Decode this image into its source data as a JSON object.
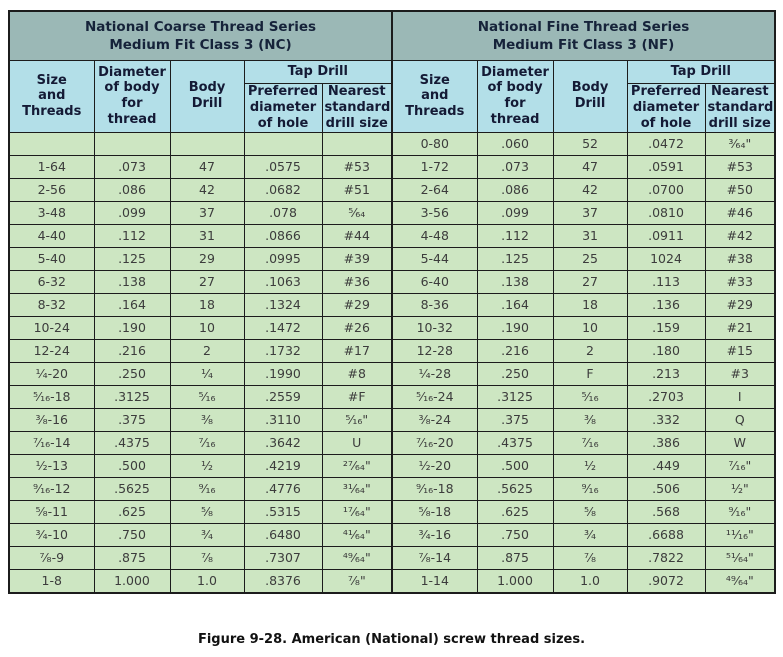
{
  "caption": "Figure 9-28. American (National) screw thread sizes.",
  "table": {
    "sections": [
      {
        "title": "National Coarse Thread Series\nMedium Fit Class 3 (NC)"
      },
      {
        "title": "National Fine Thread Series\nMedium Fit Class 3 (NF)"
      }
    ],
    "columns": {
      "size": "Size\nand\nThreads",
      "diameter": "Diameter\nof body\nfor\nthread",
      "body_drill": "Body\nDrill",
      "tap_drill": "Tap Drill",
      "preferred": "Preferred\ndiameter\nof hole",
      "nearest": "Nearest\nstandard\ndrill size"
    },
    "rows": [
      {
        "nc": [
          "",
          "",
          "",
          "",
          ""
        ],
        "nf": [
          "0-80",
          ".060",
          "52",
          ".0472",
          "³⁄₆₄\""
        ]
      },
      {
        "nc": [
          "1-64",
          ".073",
          "47",
          ".0575",
          "#53"
        ],
        "nf": [
          "1-72",
          ".073",
          "47",
          ".0591",
          "#53"
        ]
      },
      {
        "nc": [
          "2-56",
          ".086",
          "42",
          ".0682",
          "#51"
        ],
        "nf": [
          "2-64",
          ".086",
          "42",
          ".0700",
          "#50"
        ]
      },
      {
        "nc": [
          "3-48",
          ".099",
          "37",
          ".078",
          "⁵⁄₆₄"
        ],
        "nf": [
          "3-56",
          ".099",
          "37",
          ".0810",
          "#46"
        ]
      },
      {
        "nc": [
          "4-40",
          ".112",
          "31",
          ".0866",
          "#44"
        ],
        "nf": [
          "4-48",
          ".112",
          "31",
          ".0911",
          "#42"
        ]
      },
      {
        "nc": [
          "5-40",
          ".125",
          "29",
          ".0995",
          "#39"
        ],
        "nf": [
          "5-44",
          ".125",
          "25",
          "1024",
          "#38"
        ]
      },
      {
        "nc": [
          "6-32",
          ".138",
          "27",
          ".1063",
          "#36"
        ],
        "nf": [
          "6-40",
          ".138",
          "27",
          ".113",
          "#33"
        ]
      },
      {
        "nc": [
          "8-32",
          ".164",
          "18",
          ".1324",
          "#29"
        ],
        "nf": [
          "8-36",
          ".164",
          "18",
          ".136",
          "#29"
        ]
      },
      {
        "nc": [
          "10-24",
          ".190",
          "10",
          ".1472",
          "#26"
        ],
        "nf": [
          "10-32",
          ".190",
          "10",
          ".159",
          "#21"
        ]
      },
      {
        "nc": [
          "12-24",
          ".216",
          "2",
          ".1732",
          "#17"
        ],
        "nf": [
          "12-28",
          ".216",
          "2",
          ".180",
          "#15"
        ]
      },
      {
        "nc": [
          "¹⁄₄-20",
          ".250",
          "¹⁄₄",
          ".1990",
          "#8"
        ],
        "nf": [
          "¹⁄₄-28",
          ".250",
          "F",
          ".213",
          "#3"
        ]
      },
      {
        "nc": [
          "⁵⁄₁₆-18",
          ".3125",
          "⁵⁄₁₆",
          ".2559",
          "#F"
        ],
        "nf": [
          "⁵⁄₁₆-24",
          ".3125",
          "⁵⁄₁₆",
          ".2703",
          "I"
        ]
      },
      {
        "nc": [
          "³⁄₈-16",
          ".375",
          "³⁄₈",
          ".3110",
          "⁵⁄₁₆\""
        ],
        "nf": [
          "³⁄₈-24",
          ".375",
          "³⁄₈",
          ".332",
          "Q"
        ]
      },
      {
        "nc": [
          "⁷⁄₁₆-14",
          ".4375",
          "⁷⁄₁₆",
          ".3642",
          "U"
        ],
        "nf": [
          "⁷⁄₁₆-20",
          ".4375",
          "⁷⁄₁₆",
          ".386",
          "W"
        ]
      },
      {
        "nc": [
          "¹⁄₂-13",
          ".500",
          "¹⁄₂",
          ".4219",
          "²⁷⁄₆₄\""
        ],
        "nf": [
          "¹⁄₂-20",
          ".500",
          "¹⁄₂",
          ".449",
          "⁷⁄₁₆\""
        ]
      },
      {
        "nc": [
          "⁹⁄₁₆-12",
          ".5625",
          "⁹⁄₁₆",
          ".4776",
          "³¹⁄₆₄\""
        ],
        "nf": [
          "⁹⁄₁₆-18",
          ".5625",
          "⁹⁄₁₆",
          ".506",
          "¹⁄₂\""
        ]
      },
      {
        "nc": [
          "⁵⁄₈-11",
          ".625",
          "⁵⁄₈",
          ".5315",
          "¹⁷⁄₆₄\""
        ],
        "nf": [
          "⁵⁄₈-18",
          ".625",
          "⁵⁄₈",
          ".568",
          "⁹⁄₁₆\""
        ]
      },
      {
        "nc": [
          "³⁄₄-10",
          ".750",
          "³⁄₄",
          ".6480",
          "⁴¹⁄₆₄\""
        ],
        "nf": [
          "³⁄₄-16",
          ".750",
          "³⁄₄",
          ".6688",
          "¹¹⁄₁₆\""
        ]
      },
      {
        "nc": [
          "⁷⁄₈-9",
          ".875",
          "⁷⁄₈",
          ".7307",
          "⁴⁹⁄₆₄\""
        ],
        "nf": [
          "⁷⁄₈-14",
          ".875",
          "⁷⁄₈",
          ".7822",
          "⁵¹⁄₆₄\""
        ]
      },
      {
        "nc": [
          "1-8",
          "1.000",
          "1.0",
          ".8376",
          "⁷⁄₈\""
        ],
        "nf": [
          "1-14",
          "1.000",
          "1.0",
          ".9072",
          "⁴⁹⁄₆₄\""
        ]
      }
    ]
  }
}
